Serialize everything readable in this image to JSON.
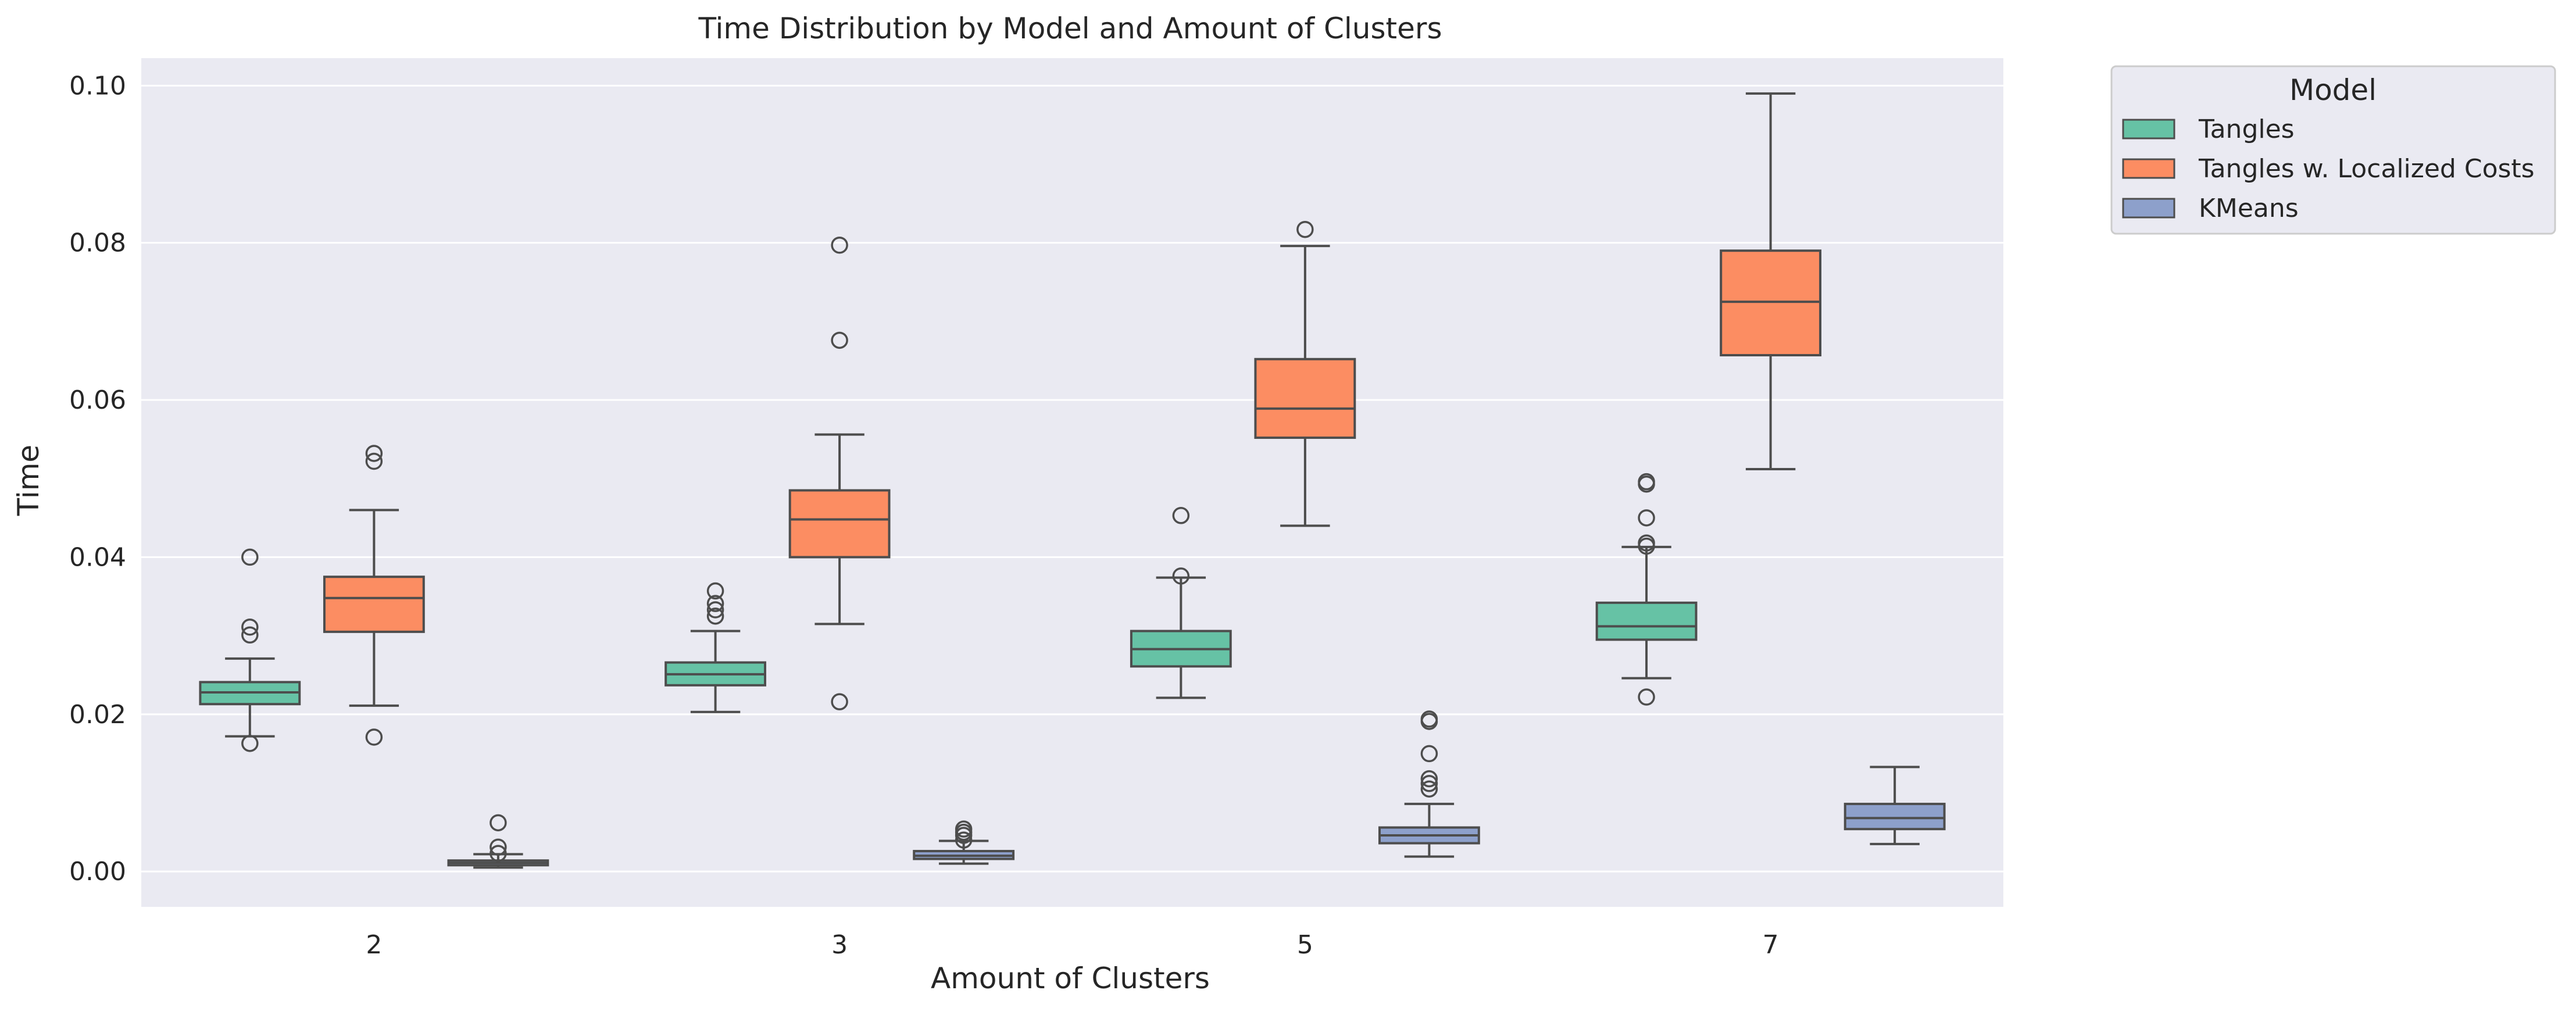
{
  "colors": {
    "plot_background": "#eaeaf2",
    "grid": "#ffffff",
    "line": "#4d4d4d",
    "Tangles": "#66c2a5",
    "Tangles w. Localized Costs": "#fc8d62",
    "KMeans": "#8da0cb"
  },
  "chart_data": {
    "type": "box",
    "title": "Time Distribution by Model and Amount of Clusters",
    "xlabel": "Amount of Clusters",
    "ylabel": "Time",
    "categories": [
      "2",
      "3",
      "5",
      "7"
    ],
    "ylim": [
      -0.0045,
      0.1035
    ],
    "yticks": [
      "0.00",
      "0.02",
      "0.04",
      "0.06",
      "0.08",
      "0.10"
    ],
    "ytick_values": [
      0.0,
      0.02,
      0.04,
      0.06,
      0.08,
      0.1
    ],
    "grid": true,
    "legend": {
      "title": "Model",
      "placement": "outside-top-right"
    },
    "series": [
      {
        "name": "Tangles",
        "boxes": [
          {
            "q1": 0.0213,
            "median": 0.0228,
            "q3": 0.0241,
            "whisker_low": 0.0172,
            "whisker_high": 0.0271,
            "outliers": [
              0.0163,
              0.0301,
              0.0311,
              0.04
            ]
          },
          {
            "q1": 0.0237,
            "median": 0.0251,
            "q3": 0.0266,
            "whisker_low": 0.0203,
            "whisker_high": 0.0306,
            "outliers": [
              0.0325,
              0.0333,
              0.0341,
              0.0357
            ]
          },
          {
            "q1": 0.0261,
            "median": 0.0283,
            "q3": 0.0306,
            "whisker_low": 0.0221,
            "whisker_high": 0.0374,
            "outliers": [
              0.0376,
              0.0453
            ]
          },
          {
            "q1": 0.0295,
            "median": 0.0312,
            "q3": 0.0342,
            "whisker_low": 0.0246,
            "whisker_high": 0.0413,
            "outliers": [
              0.0222,
              0.0414,
              0.0418,
              0.045,
              0.0493,
              0.0496
            ]
          }
        ]
      },
      {
        "name": "Tangles w. Localized Costs",
        "boxes": [
          {
            "q1": 0.0305,
            "median": 0.0348,
            "q3": 0.0375,
            "whisker_low": 0.0211,
            "whisker_high": 0.046,
            "outliers": [
              0.0171,
              0.0522,
              0.0532
            ]
          },
          {
            "q1": 0.04,
            "median": 0.0448,
            "q3": 0.0485,
            "whisker_low": 0.0315,
            "whisker_high": 0.0556,
            "outliers": [
              0.0216,
              0.0676,
              0.0797
            ]
          },
          {
            "q1": 0.0552,
            "median": 0.0589,
            "q3": 0.0652,
            "whisker_low": 0.044,
            "whisker_high": 0.0796,
            "outliers": [
              0.0817
            ]
          },
          {
            "q1": 0.0657,
            "median": 0.0725,
            "q3": 0.079,
            "whisker_low": 0.0512,
            "whisker_high": 0.099,
            "outliers": []
          }
        ]
      },
      {
        "name": "KMeans",
        "boxes": [
          {
            "q1": 0.0008,
            "median": 0.0011,
            "q3": 0.0014,
            "whisker_low": 0.0005,
            "whisker_high": 0.0022,
            "outliers": [
              0.0023,
              0.0031,
              0.0062
            ]
          },
          {
            "q1": 0.0016,
            "median": 0.002,
            "q3": 0.0026,
            "whisker_low": 0.001,
            "whisker_high": 0.0039,
            "outliers": [
              0.004,
              0.0046,
              0.005,
              0.0054
            ]
          },
          {
            "q1": 0.0036,
            "median": 0.0046,
            "q3": 0.0056,
            "whisker_low": 0.0019,
            "whisker_high": 0.0086,
            "outliers": [
              0.0105,
              0.0112,
              0.0118,
              0.015,
              0.0191,
              0.0194
            ]
          },
          {
            "q1": 0.0054,
            "median": 0.0068,
            "q3": 0.0086,
            "whisker_low": 0.0035,
            "whisker_high": 0.0133,
            "outliers": []
          }
        ]
      }
    ]
  }
}
